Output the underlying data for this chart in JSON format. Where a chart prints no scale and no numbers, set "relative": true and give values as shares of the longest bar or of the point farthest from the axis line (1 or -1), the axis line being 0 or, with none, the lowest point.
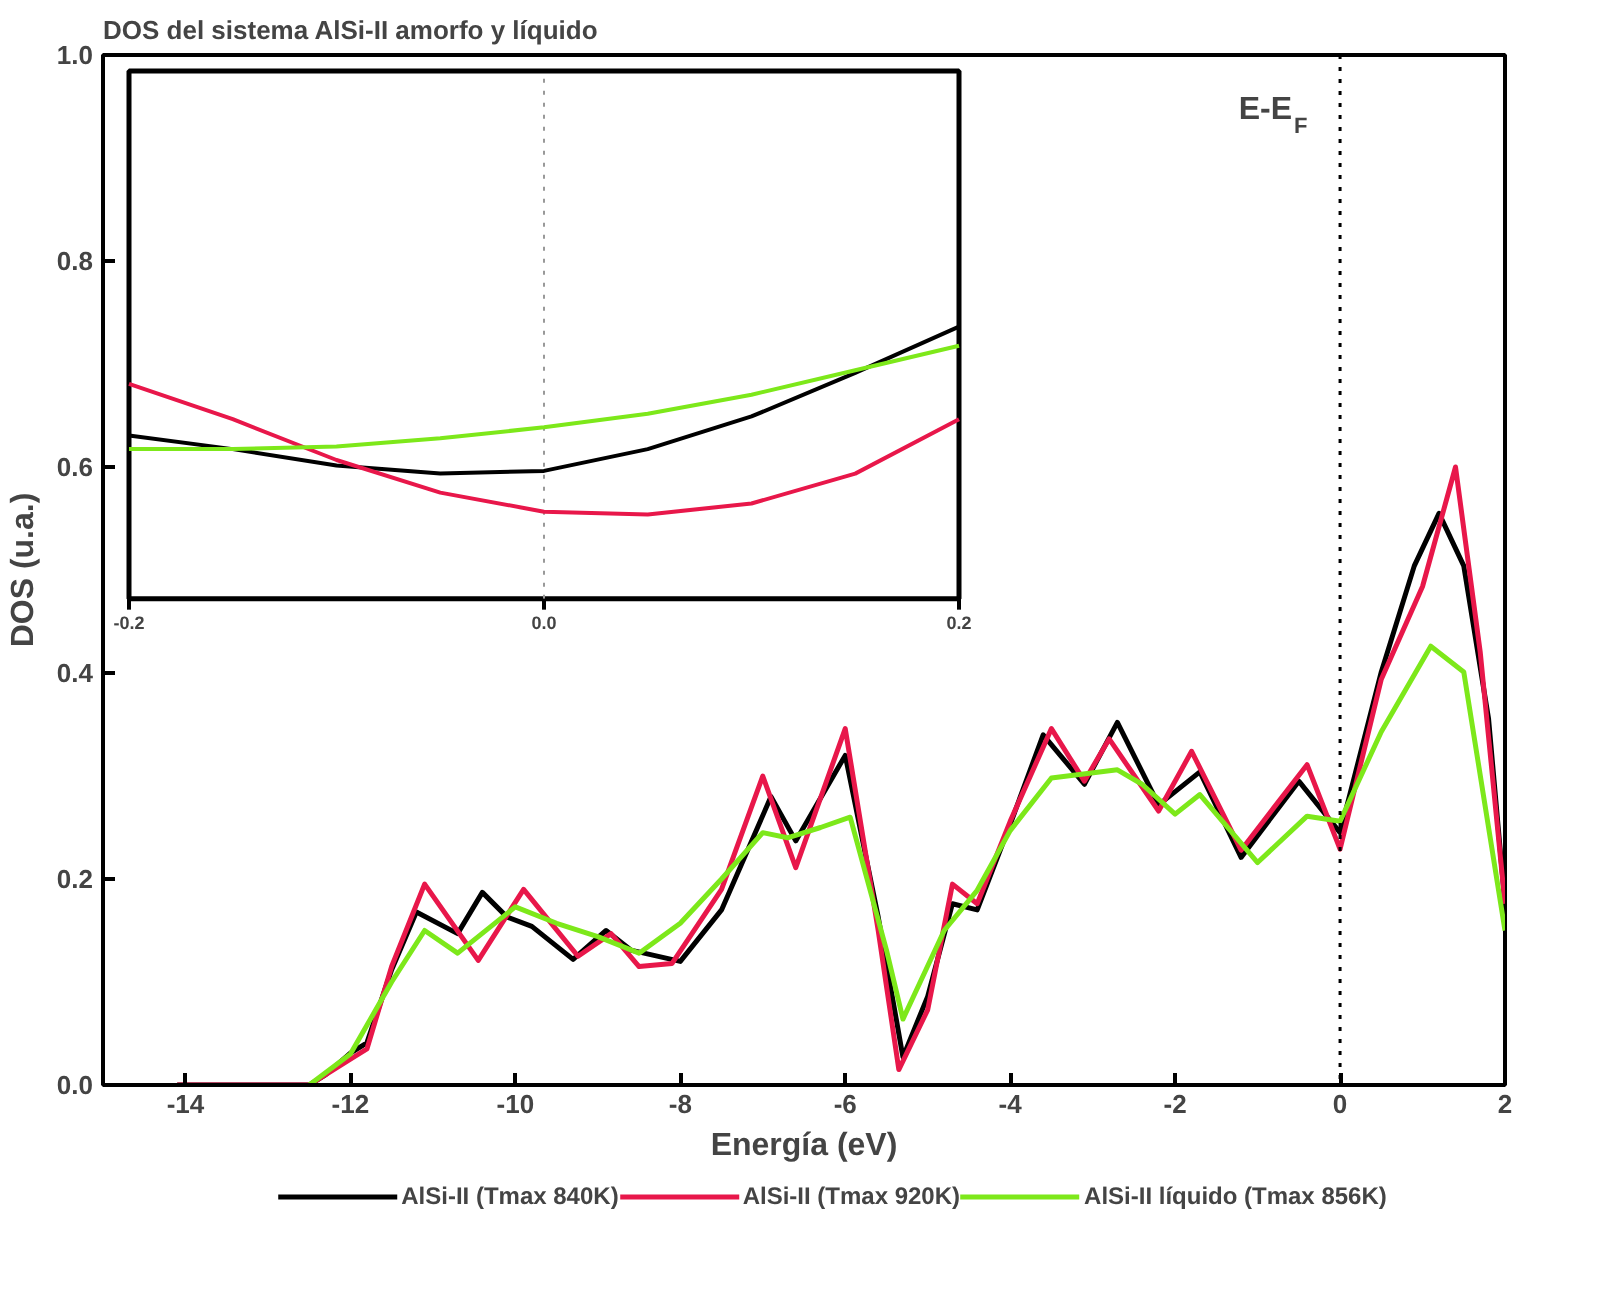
{
  "chart_data": [
    {
      "type": "line",
      "title": "DOS del sistema AlSi-II amorfo y líquido",
      "xlabel": "Energía (eV)",
      "ylabel": "DOS (u.a.)",
      "xlim": [
        -15,
        2
      ],
      "ylim": [
        0,
        1
      ],
      "xticks": [
        -14,
        -12,
        -10,
        -8,
        -6,
        -4,
        -2,
        0,
        2
      ],
      "yticks": [
        {
          "value": 0,
          "label": "0.0"
        },
        {
          "value": 0.2,
          "label": "0.2"
        },
        {
          "value": 0.4,
          "label": "0.4"
        },
        {
          "value": 0.6,
          "label": "0.6"
        },
        {
          "value": 0.8,
          "label": "0.8"
        },
        {
          "value": 1,
          "label": "1.0"
        }
      ],
      "grid": false,
      "legend": "bottom",
      "line_style": "solid",
      "marker": "none",
      "ref_lines": [
        {
          "axis": "x",
          "value": 0,
          "label": "E-E$_{F}$",
          "color": "#000000",
          "line_style": "dotted"
        }
      ],
      "series": [
        {
          "name": "AlSi-II (Tmax 840K)",
          "color": "#000000",
          "x": [
            -14.1,
            -12.5,
            -12.3,
            -12.0,
            -11.8,
            -11.5,
            -11.2,
            -10.7,
            -10.4,
            -10.1,
            -9.8,
            -9.3,
            -8.9,
            -8.6,
            -8.0,
            -7.5,
            -6.9,
            -6.6,
            -6.0,
            -5.6,
            -5.3,
            -5.0,
            -4.7,
            -4.4,
            -4.0,
            -3.6,
            -3.1,
            -2.7,
            -2.2,
            -1.7,
            -1.2,
            -0.5,
            0.0,
            0.5,
            0.9,
            1.2,
            1.5,
            1.8,
            2.0
          ],
          "values": [
            0,
            0,
            0.01,
            0.031,
            0.041,
            0.112,
            0.168,
            0.147,
            0.187,
            0.163,
            0.154,
            0.122,
            0.15,
            0.131,
            0.12,
            0.17,
            0.28,
            0.237,
            0.32,
            0.163,
            0.027,
            0.086,
            0.176,
            0.17,
            0.253,
            0.34,
            0.292,
            0.352,
            0.272,
            0.304,
            0.221,
            0.295,
            0.245,
            0.401,
            0.504,
            0.555,
            0.504,
            0.356,
            0.176
          ]
        },
        {
          "name": "AlSi-II (Tmax 920K)",
          "color": "#e8174a",
          "x": [
            -14.1,
            -12.5,
            -12.0,
            -11.8,
            -11.5,
            -11.1,
            -10.45,
            -9.9,
            -9.24,
            -8.84,
            -8.5,
            -8.1,
            -7.5,
            -7.0,
            -6.6,
            -6.0,
            -5.6,
            -5.35,
            -5.0,
            -4.7,
            -4.4,
            -4.0,
            -3.5,
            -3.1,
            -2.8,
            -2.2,
            -1.8,
            -1.2,
            -0.4,
            0.0,
            0.5,
            1.0,
            1.4,
            1.7,
            2.0
          ],
          "values": [
            0,
            0,
            0.025,
            0.035,
            0.115,
            0.195,
            0.121,
            0.19,
            0.125,
            0.147,
            0.115,
            0.118,
            0.19,
            0.3,
            0.211,
            0.346,
            0.15,
            0.015,
            0.073,
            0.195,
            0.176,
            0.256,
            0.346,
            0.295,
            0.336,
            0.266,
            0.324,
            0.228,
            0.311,
            0.229,
            0.394,
            0.484,
            0.6,
            0.42,
            0.176
          ]
        },
        {
          "name": "AlSi-II líquido (Tmax 856K)",
          "color": "#7de81a",
          "x": [
            -12.5,
            -12.0,
            -11.5,
            -11.1,
            -10.7,
            -10.0,
            -9.5,
            -9.0,
            -8.5,
            -8.0,
            -7.5,
            -7.0,
            -6.7,
            -6.3,
            -5.94,
            -5.5,
            -5.3,
            -4.8,
            -4.4,
            -4.0,
            -3.5,
            -2.7,
            -2.4,
            -2.0,
            -1.7,
            -1.0,
            -0.4,
            0.0,
            0.5,
            1.1,
            1.5,
            2.0
          ],
          "values": [
            0,
            0.03,
            0.1,
            0.15,
            0.128,
            0.173,
            0.157,
            0.144,
            0.128,
            0.157,
            0.2,
            0.245,
            0.24,
            0.25,
            0.26,
            0.131,
            0.064,
            0.15,
            0.189,
            0.247,
            0.298,
            0.306,
            0.292,
            0.263,
            0.282,
            0.216,
            0.261,
            0.256,
            0.343,
            0.426,
            0.401,
            0.15
          ]
        }
      ]
    },
    {
      "type": "line",
      "relative": true,
      "xlim": [
        -0.2,
        0.2
      ],
      "tick_labels": "x",
      "xticks": [
        {
          "value": -0.2,
          "label": "-0.2"
        },
        {
          "value": 0,
          "label": "0.0"
        },
        {
          "value": 0.2,
          "label": "0.2"
        }
      ],
      "ref_lines": [
        {
          "axis": "x",
          "value": 0,
          "color": "#999999",
          "line_style": "dotted"
        }
      ],
      "series": [
        {
          "color": "#000000",
          "x": [
            -0.2,
            -0.15,
            -0.1,
            -0.05,
            0,
            0.05,
            0.1,
            0.15,
            0.2
          ],
          "values": [
            0.6,
            0.55,
            0.49,
            0.46,
            0.47,
            0.55,
            0.67,
            0.83,
            1.0
          ]
        },
        {
          "color": "#e8174a",
          "x": [
            -0.2,
            -0.15,
            -0.1,
            -0.05,
            0,
            0.05,
            0.1,
            0.15,
            0.2
          ],
          "values": [
            0.79,
            0.66,
            0.51,
            0.39,
            0.32,
            0.31,
            0.35,
            0.46,
            0.66
          ]
        },
        {
          "color": "#7de81a",
          "x": [
            -0.2,
            -0.15,
            -0.1,
            -0.05,
            0,
            0.05,
            0.1,
            0.15,
            0.2
          ],
          "values": [
            0.55,
            0.55,
            0.56,
            0.59,
            0.63,
            0.68,
            0.75,
            0.84,
            0.93
          ]
        }
      ]
    }
  ]
}
